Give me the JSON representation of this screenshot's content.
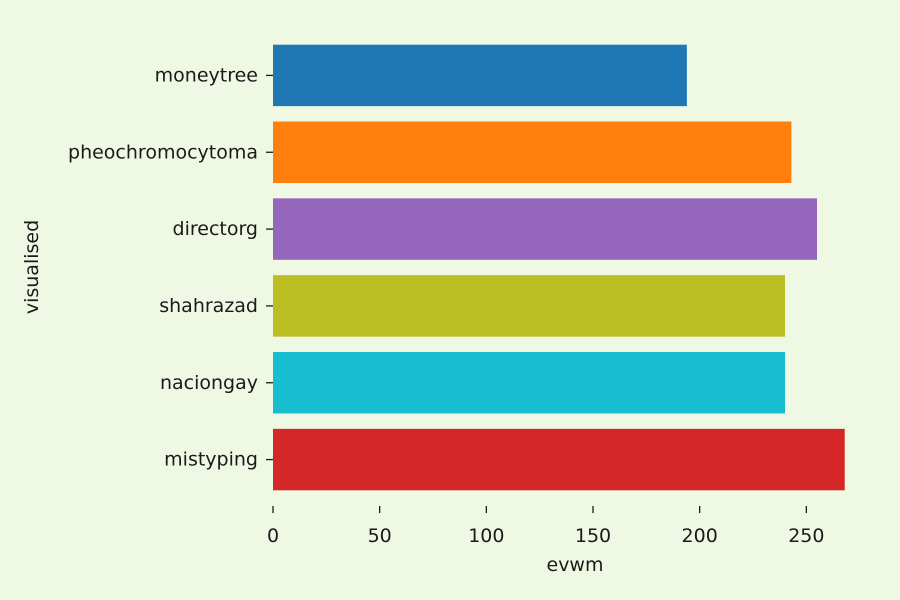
{
  "chart_data": {
    "type": "bar",
    "orientation": "horizontal",
    "categories": [
      "moneytree",
      "pheochromocytoma",
      "directorg",
      "shahrazad",
      "naciongay",
      "mistyping"
    ],
    "values": [
      194,
      243,
      255,
      240,
      240,
      268
    ],
    "colors": [
      "#1f77b4",
      "#ff7f0e",
      "#9467bd",
      "#bcbd22",
      "#17becf",
      "#d62728"
    ],
    "xlabel": "evwm",
    "ylabel": "visualised",
    "xlim": [
      0,
      270
    ],
    "xticks": [
      0,
      50,
      100,
      150,
      200,
      250
    ],
    "grid": false,
    "background": "#eef8e3"
  }
}
